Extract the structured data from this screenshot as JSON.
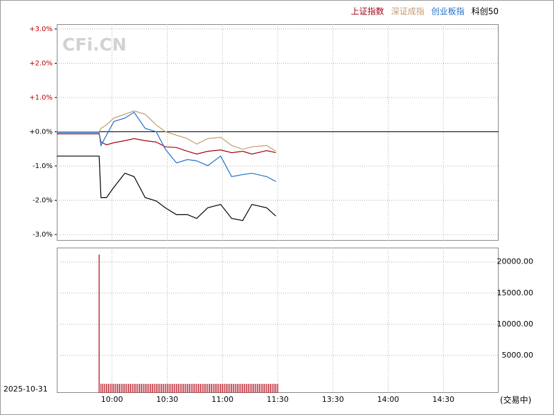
{
  "watermark": "CFi.CN",
  "date": "2025-10-31",
  "status": "(交易中)",
  "chart_data": [
    {
      "type": "line",
      "legend": "top-right",
      "xlim": [
        0,
        240
      ],
      "ylim": [
        -3.18,
        3.14
      ],
      "yticks": [
        {
          "value": 3,
          "label": "+3.0%"
        },
        {
          "value": 2,
          "label": "+2.0%"
        },
        {
          "value": 1,
          "label": "+1.0%"
        },
        {
          "value": 0,
          "label": "+0.0%"
        },
        {
          "value": -1,
          "label": "-1.0%"
        },
        {
          "value": -2,
          "label": "-2.0%"
        },
        {
          "value": -3,
          "label": "-3.0%"
        }
      ],
      "grid": true,
      "x": [
        0,
        23,
        24,
        27,
        31,
        37,
        42,
        48,
        54,
        59,
        65,
        71,
        76,
        82,
        89,
        95,
        101,
        106,
        114,
        119
      ],
      "series": [
        {
          "name": "上证指数",
          "color": "#a50010",
          "values": [
            -0.06,
            -0.06,
            -0.3,
            -0.38,
            -0.32,
            -0.26,
            -0.2,
            -0.26,
            -0.3,
            -0.44,
            -0.46,
            -0.57,
            -0.65,
            -0.57,
            -0.53,
            -0.61,
            -0.57,
            -0.65,
            -0.55,
            -0.61
          ]
        },
        {
          "name": "深证成指",
          "color": "#c39a6b",
          "values": [
            0,
            0,
            0.1,
            0.2,
            0.4,
            0.51,
            0.61,
            0.51,
            0.2,
            0,
            -0.1,
            -0.2,
            -0.36,
            -0.2,
            -0.16,
            -0.4,
            -0.51,
            -0.44,
            -0.4,
            -0.57
          ]
        },
        {
          "name": "创业板指",
          "color": "#1f6fc9",
          "values": [
            -0.02,
            -0.02,
            -0.4,
            -0.1,
            0.3,
            0.4,
            0.57,
            0.1,
            0,
            -0.51,
            -0.91,
            -0.81,
            -0.85,
            -0.99,
            -0.71,
            -1.31,
            -1.25,
            -1.21,
            -1.31,
            -1.45
          ]
        },
        {
          "name": "科创50",
          "color": "#000000",
          "values": [
            -0.71,
            -0.71,
            -1.92,
            -1.92,
            -1.62,
            -1.21,
            -1.31,
            -1.92,
            -2.02,
            -2.22,
            -2.42,
            -2.42,
            -2.53,
            -2.22,
            -2.12,
            -2.53,
            -2.59,
            -2.12,
            -2.22,
            -2.46
          ]
        }
      ]
    },
    {
      "type": "bar",
      "color": "#b00010",
      "xlim": [
        0,
        240
      ],
      "xticks": [
        {
          "value": 30,
          "label": "10:00"
        },
        {
          "value": 60,
          "label": "10:30"
        },
        {
          "value": 90,
          "label": "11:00"
        },
        {
          "value": 120,
          "label": "11:30"
        },
        {
          "value": 150,
          "label": "13:30"
        },
        {
          "value": 180,
          "label": "14:00"
        },
        {
          "value": 210,
          "label": "14:30"
        }
      ],
      "ylim": [
        -1000,
        22300
      ],
      "yticks": [
        {
          "value": 20000,
          "label": "20000.00"
        },
        {
          "value": 15000,
          "label": "15000.00"
        },
        {
          "value": 10000,
          "label": "10000.00"
        },
        {
          "value": 5000,
          "label": "5000.00"
        }
      ],
      "grid": true,
      "x": [
        23,
        24,
        25,
        26,
        27,
        28,
        29,
        30,
        31,
        32,
        33,
        34,
        35,
        36,
        37,
        38,
        39,
        40,
        41,
        42,
        43,
        44,
        45,
        46,
        47,
        48,
        49,
        50,
        51,
        52,
        53,
        54,
        55,
        56,
        57,
        58,
        59,
        60,
        61,
        62,
        63,
        64,
        65,
        66,
        67,
        68,
        69,
        70,
        71,
        72,
        73,
        74,
        75,
        76,
        77,
        78,
        79,
        80,
        81,
        82,
        83,
        84,
        85,
        86,
        87,
        88,
        89,
        90,
        91,
        92,
        93,
        94,
        95,
        96,
        97,
        98,
        99,
        100,
        101,
        102,
        103,
        104,
        105,
        106,
        107,
        108,
        109,
        110,
        111,
        112,
        113,
        114,
        115,
        116,
        117,
        118,
        119,
        120
      ],
      "values": [
        21190,
        460,
        470,
        450,
        465,
        440,
        455,
        470,
        445,
        460,
        450,
        435,
        455,
        440,
        465,
        450,
        445,
        460,
        440,
        450,
        455,
        430,
        445,
        460,
        450,
        440,
        455,
        445,
        435,
        450,
        460,
        440,
        445,
        455,
        430,
        450,
        440,
        460,
        445,
        435,
        450,
        455,
        440,
        445,
        460,
        430,
        450,
        445,
        455,
        440,
        435,
        450,
        460,
        445,
        440,
        455,
        430,
        445,
        450,
        440,
        460,
        445,
        435,
        450,
        455,
        440,
        445,
        430,
        450,
        460,
        440,
        445,
        455,
        435,
        450,
        440,
        445,
        460,
        430,
        450,
        445,
        440,
        455,
        435,
        450,
        445,
        440,
        460,
        445,
        450,
        435,
        455,
        440,
        450,
        445,
        460,
        440,
        455
      ]
    }
  ]
}
